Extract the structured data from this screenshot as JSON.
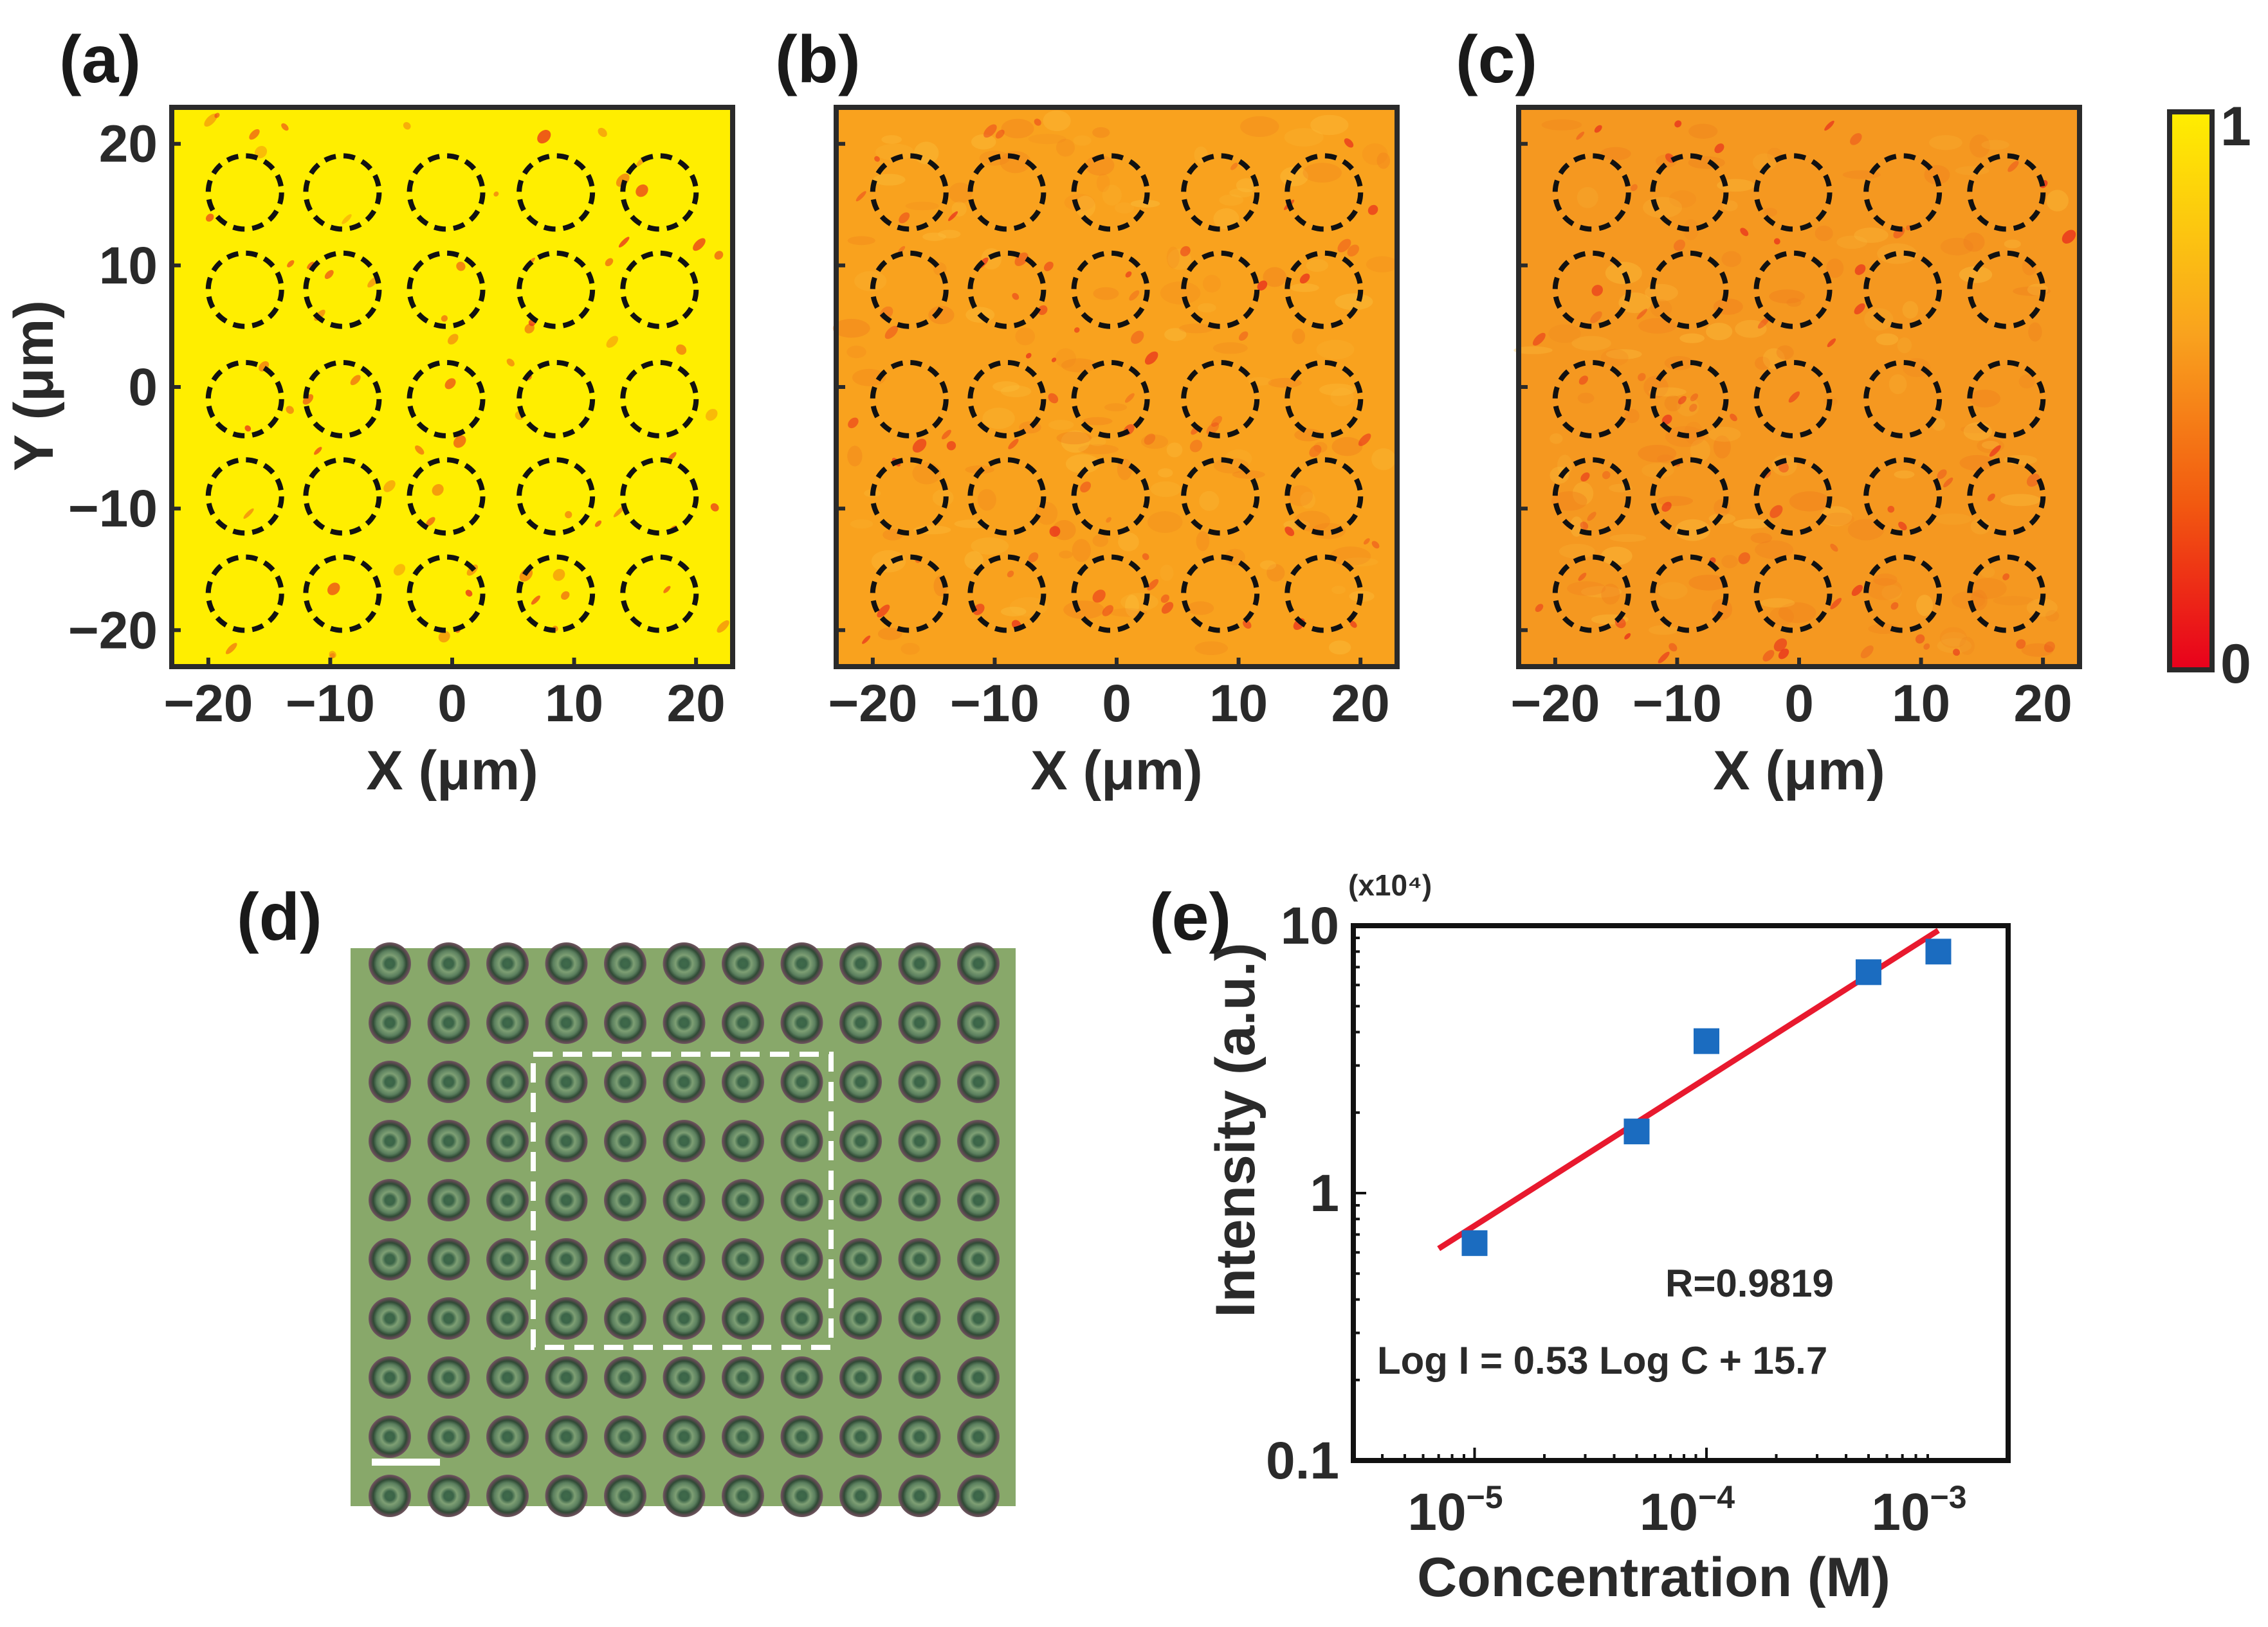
{
  "colors": {
    "map_yellow": "#ffee00",
    "map_orange": "#f9a21e",
    "hotspot_red": "#e8301c",
    "micro_green": "#88a86a",
    "data_blue": "#1b6cc0",
    "fit_red": "#e8192e",
    "axis": "#2a2a2a"
  },
  "panels": {
    "a": {
      "label": "(a)"
    },
    "b": {
      "label": "(b)"
    },
    "c": {
      "label": "(c)"
    },
    "d": {
      "label": "(d)"
    },
    "e": {
      "label": "(e)"
    }
  },
  "heatmaps": {
    "xlabel": "X (μm)",
    "ylabel": "Y (μm)",
    "x_ticks": [
      "−20",
      "−10",
      "0",
      "10",
      "20"
    ],
    "y_ticks": [
      "20",
      "10",
      "0",
      "−10",
      "−20"
    ],
    "x_tick_values": [
      -20,
      -10,
      0,
      10,
      20
    ],
    "y_tick_values": [
      20,
      10,
      0,
      -10,
      -20
    ]
  },
  "colorbar": {
    "max_label": "1",
    "min_label": "0"
  },
  "chart_data": [
    {
      "panel": "(a)",
      "type": "heatmap",
      "xlabel": "X (μm)",
      "ylabel": "Y (μm)",
      "xlim": [
        -23,
        23
      ],
      "ylim": [
        -23,
        23
      ],
      "mean_intensity": 0.93,
      "circle_centers_x": [
        -17,
        -9,
        -0.5,
        8.5,
        17
      ],
      "circle_centers_y": [
        16,
        8,
        -1,
        -9,
        -17
      ]
    },
    {
      "panel": "(b)",
      "type": "heatmap",
      "xlabel": "X (μm)",
      "xlim": [
        -23,
        23
      ],
      "ylim": [
        -23,
        23
      ],
      "mean_intensity": 0.6,
      "circle_centers_x": [
        -17,
        -9,
        -0.5,
        8.5,
        17
      ],
      "circle_centers_y": [
        16,
        8,
        -1,
        -9,
        -17
      ]
    },
    {
      "panel": "(c)",
      "type": "heatmap",
      "xlabel": "X (μm)",
      "xlim": [
        -23,
        23
      ],
      "ylim": [
        -23,
        23
      ],
      "mean_intensity": 0.55,
      "circle_centers_x": [
        -17,
        -9,
        -0.5,
        8.5,
        17
      ],
      "circle_centers_y": [
        16,
        8,
        -1,
        -9,
        -17
      ]
    },
    {
      "panel": "(e)",
      "type": "scatter",
      "xlabel": "Concentration (M)",
      "ylabel": "Intensity (a.u.)",
      "y_multiplier": "(x10⁴)",
      "xscale": "log",
      "yscale": "log",
      "xlim": [
        3e-06,
        0.002
      ],
      "ylim": [
        0.1,
        10
      ],
      "x_ticks": [
        {
          "base": "10",
          "exp": "−5"
        },
        {
          "base": "10",
          "exp": "−4"
        },
        {
          "base": "10",
          "exp": "−3"
        }
      ],
      "y_ticks": [
        "10",
        "1",
        "0.1"
      ],
      "points": [
        {
          "x": 1e-05,
          "y": 0.65
        },
        {
          "x": 5e-05,
          "y": 1.7
        },
        {
          "x": 0.0001,
          "y": 3.7
        },
        {
          "x": 0.0005,
          "y": 6.7
        },
        {
          "x": 0.001,
          "y": 8.0
        }
      ],
      "fit": {
        "x": [
          7e-06,
          0.001
        ],
        "y": [
          0.62,
          9.6
        ]
      },
      "r_text": "R=0.9819",
      "equation": "Log I = 0.53 Log C + 15.7"
    }
  ]
}
